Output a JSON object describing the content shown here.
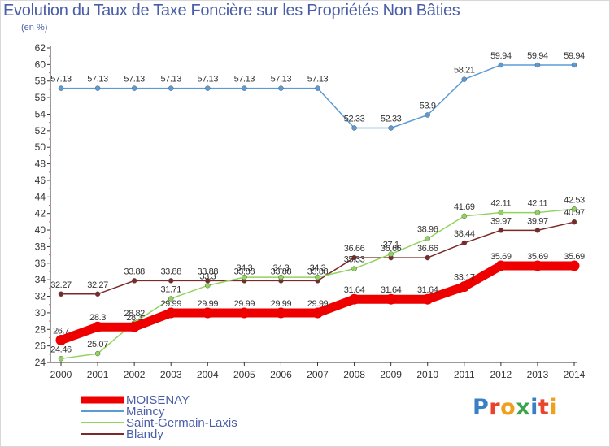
{
  "title": "Evolution du Taux de Taxe Foncière sur les Propriétés Non Bâties",
  "subtitle": "(en %)",
  "logo": {
    "text": "Proxiti",
    "colors": [
      "#3a7fc4",
      "#e7432d",
      "#f0a020",
      "#3aa54a",
      "#3a7fc4",
      "#e7432d",
      "#f0a020"
    ]
  },
  "chart_data": {
    "type": "line",
    "title": "Evolution du Taux de Taxe Foncière sur les Propriétés Non Bâties",
    "ylabel": "(en %)",
    "xlabel": "",
    "x": [
      "2000",
      "2001",
      "2002",
      "2003",
      "2004",
      "2005",
      "2006",
      "2007",
      "2008",
      "2009",
      "2010",
      "2011",
      "2012",
      "2013",
      "2014"
    ],
    "ylim": [
      24,
      62
    ],
    "yticks": [
      24,
      26,
      28,
      30,
      32,
      34,
      36,
      38,
      40,
      42,
      44,
      46,
      48,
      50,
      52,
      54,
      56,
      58,
      60,
      62
    ],
    "grid": false,
    "legend_position": "bottom-left",
    "series": [
      {
        "name": "MOISENAY",
        "color": "#ee0000",
        "width": 11,
        "values": [
          26.7,
          28.3,
          28.3,
          29.99,
          29.99,
          29.99,
          29.99,
          29.99,
          31.64,
          31.64,
          31.64,
          33.17,
          35.69,
          35.69,
          35.69
        ],
        "labels": [
          "26.7",
          "28.3",
          "28.3",
          "29.99",
          "29.99",
          "29.99",
          "29.99",
          "29.99",
          "31.64",
          "31.64",
          "31.64",
          "33.17",
          "35.69",
          "35.69",
          "35.69"
        ]
      },
      {
        "name": "Maincy",
        "color": "#5b9bd5",
        "width": 1.5,
        "values": [
          57.13,
          57.13,
          57.13,
          57.13,
          57.13,
          57.13,
          57.13,
          57.13,
          52.33,
          52.33,
          53.9,
          58.21,
          59.94,
          59.94,
          59.94
        ],
        "labels": [
          "57.13",
          "57.13",
          "57.13",
          "57.13",
          "57.13",
          "57.13",
          "57.13",
          "57.13",
          "52.33",
          "52.33",
          "53.9",
          "58.21",
          "59.94",
          "59.94",
          "59.94"
        ]
      },
      {
        "name": "Saint-Germain-Laxis",
        "color": "#90d45a",
        "width": 1.5,
        "values": [
          24.46,
          25.07,
          28.82,
          31.71,
          33.3,
          34.3,
          34.3,
          34.3,
          35.33,
          37.1,
          38.96,
          41.69,
          42.11,
          42.11,
          42.53
        ],
        "labels": [
          "24.46",
          "25.07",
          "28.82",
          "31.71",
          "33.3",
          "34.3",
          "34.3",
          "34.3",
          "35.33",
          "37.1",
          "38.96",
          "41.69",
          "42.11",
          "42.11",
          "42.53"
        ]
      },
      {
        "name": "Blandy",
        "color": "#7b2a2a",
        "width": 1.5,
        "values": [
          32.27,
          32.27,
          33.88,
          33.88,
          33.88,
          33.88,
          33.88,
          33.88,
          36.66,
          36.66,
          36.66,
          38.44,
          39.97,
          39.97,
          40.97
        ],
        "labels": [
          "32.27",
          "32.27",
          "33.88",
          "33.88",
          "33.88",
          "33.88",
          "33.88",
          "33.88",
          "36.66",
          "36.66",
          "36.66",
          "38.44",
          "39.97",
          "39.97",
          "40.97"
        ]
      }
    ]
  }
}
